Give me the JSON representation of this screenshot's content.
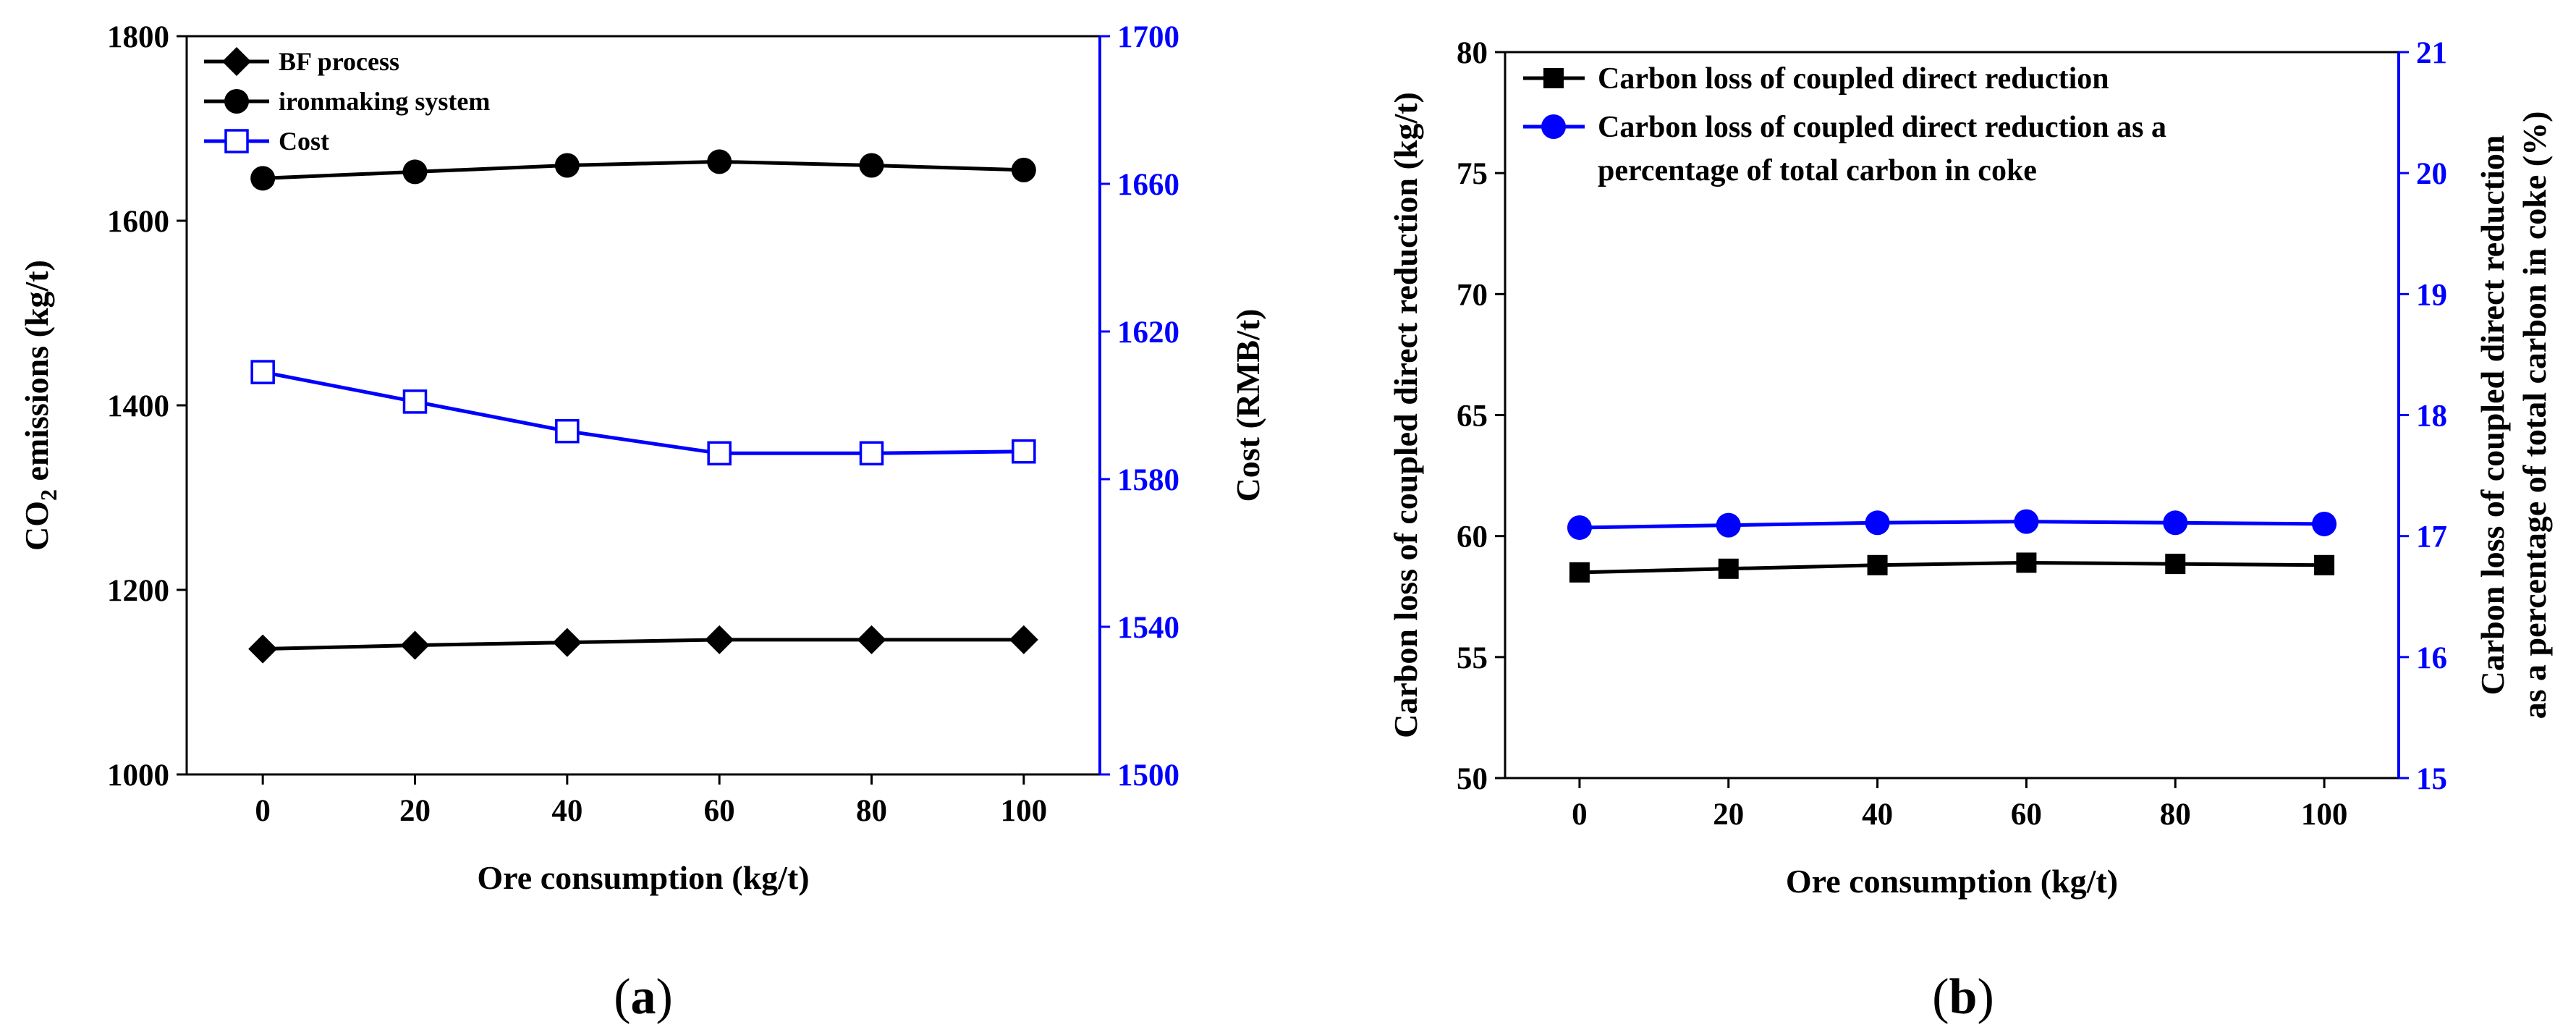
{
  "chart_data": [
    {
      "id": "a",
      "type": "line",
      "caption": "(a)",
      "caption_letter": "a",
      "xlabel": "Ore consumption (kg/t)",
      "ylabel": "CO2 emissions (kg/t)",
      "ylabel_parts": [
        "CO",
        "2",
        " emissions (kg/t)"
      ],
      "y2label": "Cost (RMB/t)",
      "x": [
        0,
        20,
        40,
        60,
        80,
        100
      ],
      "xlim": [
        -10,
        110
      ],
      "ylim": [
        1000,
        1800
      ],
      "y2lim": [
        1500,
        1700
      ],
      "xticks": [
        "0",
        "20",
        "40",
        "60",
        "80",
        "100"
      ],
      "yticks": [
        "1000",
        "1200",
        "1400",
        "1600",
        "1800"
      ],
      "y2ticks": [
        "1500",
        "1540",
        "1580",
        "1620",
        "1660",
        "1700"
      ],
      "series": [
        {
          "name": "BF process",
          "axis": "left",
          "marker": "diamond",
          "color": "#000000",
          "values": [
            1136,
            1140,
            1143,
            1146,
            1146,
            1146
          ]
        },
        {
          "name": "ironmaking system",
          "axis": "left",
          "marker": "circle",
          "color": "#000000",
          "values": [
            1646,
            1653,
            1660,
            1664,
            1660,
            1655
          ]
        },
        {
          "name": "Cost",
          "axis": "right",
          "marker": "open-square",
          "color": "#0000ff",
          "values": [
            1609,
            1601,
            1593,
            1587,
            1587,
            1587.5
          ]
        }
      ],
      "legend_position": "top-left",
      "axis_color_left": "#000000",
      "axis_color_right": "#0000ff"
    },
    {
      "id": "b",
      "type": "line",
      "caption": "(b)",
      "caption_letter": "b",
      "xlabel": "Ore consumption (kg/t)",
      "ylabel": "Carbon loss of coupled direct reduction (kg/t)",
      "y2label_lines": [
        "Carbon loss of coupled direct reduction",
        "as a percentage of total carbon in coke (%)"
      ],
      "x": [
        0,
        20,
        40,
        60,
        80,
        100
      ],
      "xlim": [
        -10,
        110
      ],
      "ylim": [
        50,
        80
      ],
      "y2lim": [
        15,
        21
      ],
      "xticks": [
        "0",
        "20",
        "40",
        "60",
        "80",
        "100"
      ],
      "yticks": [
        "50",
        "55",
        "60",
        "65",
        "70",
        "75",
        "80"
      ],
      "y2ticks": [
        "15",
        "16",
        "17",
        "18",
        "19",
        "20",
        "21"
      ],
      "series": [
        {
          "name": "Carbon loss of coupled direct reduction",
          "legend_lines": [
            "Carbon loss of coupled direct reduction"
          ],
          "axis": "left",
          "marker": "square",
          "color": "#000000",
          "values": [
            58.5,
            58.65,
            58.8,
            58.9,
            58.85,
            58.8
          ]
        },
        {
          "name": "Carbon loss of coupled direct reduction as a percentage of total carbon in coke",
          "legend_lines": [
            "Carbon loss of coupled direct reduction as a",
            "percentage of total carbon in coke"
          ],
          "axis": "right",
          "marker": "circle",
          "color": "#0000ff",
          "values": [
            17.07,
            17.09,
            17.11,
            17.12,
            17.11,
            17.1
          ]
        }
      ],
      "legend_position": "top-left",
      "axis_color_left": "#000000",
      "axis_color_right": "#0000ff"
    }
  ]
}
